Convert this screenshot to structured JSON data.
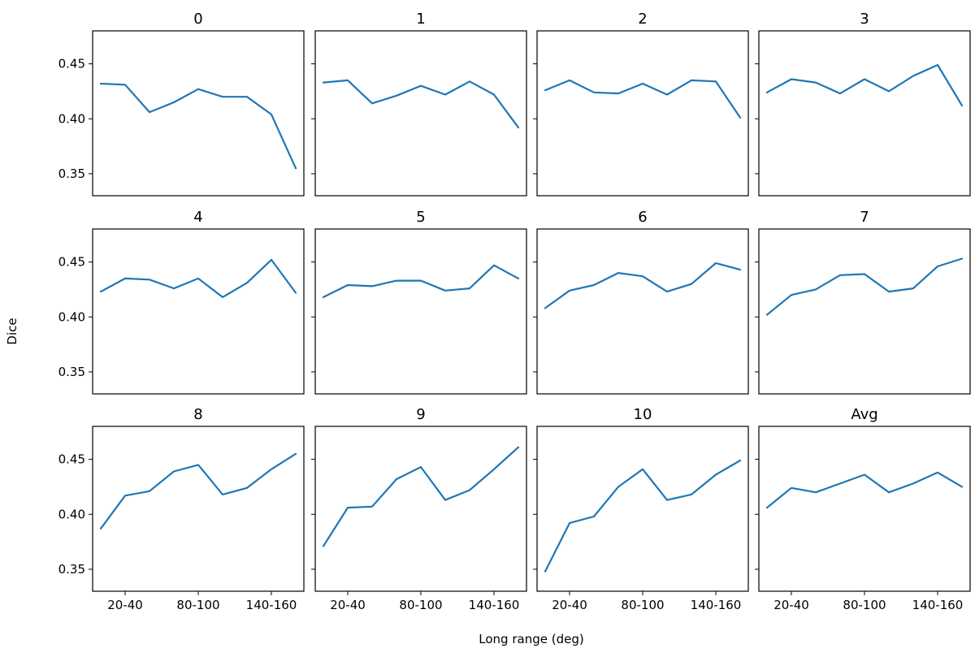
{
  "figure": {
    "xlabel": "Long range (deg)",
    "ylabel": "Dice",
    "line_color": "#1f77b4"
  },
  "chart_data": {
    "type": "line",
    "layout": "3x4 grid, shared axes",
    "ylim": [
      0.33,
      0.48
    ],
    "yticks": [
      "0.35",
      "0.40",
      "0.45"
    ],
    "ytick_values": [
      0.35,
      0.4,
      0.45
    ],
    "x_points": 9,
    "xticks": [
      "20-40",
      "80-100",
      "140-160"
    ],
    "xtick_indices": [
      1,
      4,
      7
    ],
    "grid": false,
    "panels": [
      {
        "title": "0",
        "values": [
          0.432,
          0.431,
          0.406,
          0.415,
          0.427,
          0.42,
          0.42,
          0.404,
          0.355
        ]
      },
      {
        "title": "1",
        "values": [
          0.433,
          0.435,
          0.414,
          0.421,
          0.43,
          0.422,
          0.434,
          0.422,
          0.392
        ]
      },
      {
        "title": "2",
        "values": [
          0.426,
          0.435,
          0.424,
          0.423,
          0.432,
          0.422,
          0.435,
          0.434,
          0.401
        ]
      },
      {
        "title": "3",
        "values": [
          0.424,
          0.436,
          0.433,
          0.423,
          0.436,
          0.425,
          0.439,
          0.449,
          0.412
        ]
      },
      {
        "title": "4",
        "values": [
          0.423,
          0.435,
          0.434,
          0.426,
          0.435,
          0.418,
          0.431,
          0.452,
          0.422
        ]
      },
      {
        "title": "5",
        "values": [
          0.418,
          0.429,
          0.428,
          0.433,
          0.433,
          0.424,
          0.426,
          0.447,
          0.435
        ]
      },
      {
        "title": "6",
        "values": [
          0.408,
          0.424,
          0.429,
          0.44,
          0.437,
          0.423,
          0.43,
          0.449,
          0.443
        ]
      },
      {
        "title": "7",
        "values": [
          0.402,
          0.42,
          0.425,
          0.438,
          0.439,
          0.423,
          0.426,
          0.446,
          0.453
        ]
      },
      {
        "title": "8",
        "values": [
          0.387,
          0.417,
          0.421,
          0.439,
          0.445,
          0.418,
          0.424,
          0.441,
          0.455
        ]
      },
      {
        "title": "9",
        "values": [
          0.371,
          0.406,
          0.407,
          0.432,
          0.443,
          0.413,
          0.422,
          0.441,
          0.461
        ]
      },
      {
        "title": "10",
        "values": [
          0.348,
          0.392,
          0.398,
          0.425,
          0.441,
          0.413,
          0.418,
          0.436,
          0.449
        ]
      },
      {
        "title": "Avg",
        "values": [
          0.406,
          0.424,
          0.42,
          0.428,
          0.436,
          0.42,
          0.428,
          0.438,
          0.425
        ]
      }
    ]
  }
}
